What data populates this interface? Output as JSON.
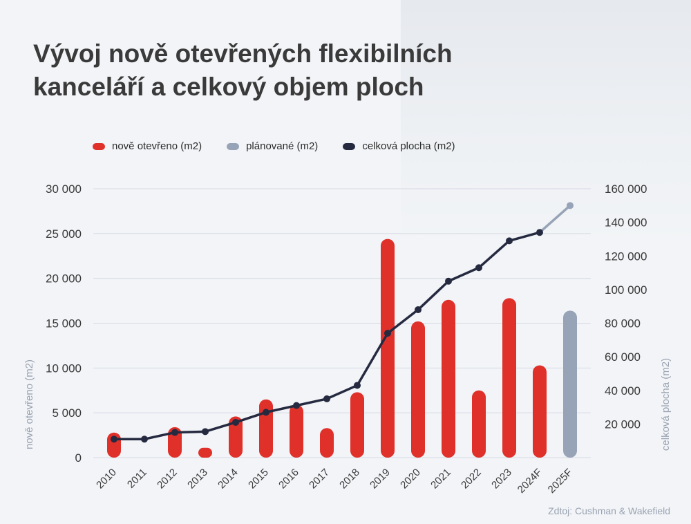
{
  "title_line1": "Vývoj nově otevřených flexibilních",
  "title_line2": "kanceláří a celkový objem ploch",
  "source": "Zdtoj: Cushman & Wakefield",
  "colors": {
    "new": "#e0302a",
    "planned": "#97a3b6",
    "total": "#262a40",
    "grid": "#d5dae3",
    "axis_label": "#9aa3b2"
  },
  "legend": [
    {
      "label": "nově otevřeno (m2)",
      "color": "#e0302a"
    },
    {
      "label": "plánované (m2)",
      "color": "#97a3b6"
    },
    {
      "label": "celková plocha (m2)",
      "color": "#262a40"
    }
  ],
  "chart_data": {
    "type": "bar",
    "categories": [
      "2010",
      "2011",
      "2012",
      "2013",
      "2014",
      "2015",
      "2016",
      "2017",
      "2018",
      "2019",
      "2020",
      "2021",
      "2022",
      "2023",
      "2024F",
      "2025F"
    ],
    "series": [
      {
        "name": "nově otevřeno (m2)",
        "type": "bar",
        "axis": "left",
        "values": [
          2800,
          0,
          3400,
          1100,
          4600,
          6500,
          5900,
          3300,
          7300,
          24400,
          15200,
          17600,
          7500,
          17800,
          10300,
          null
        ]
      },
      {
        "name": "plánované (m2)",
        "type": "bar",
        "axis": "left",
        "values": [
          null,
          null,
          null,
          null,
          null,
          null,
          null,
          null,
          null,
          null,
          null,
          null,
          null,
          null,
          null,
          16400
        ]
      },
      {
        "name": "celková plocha (m2)",
        "type": "line",
        "axis": "right",
        "values": [
          11000,
          11000,
          15000,
          15500,
          21000,
          27000,
          31000,
          35000,
          43000,
          74000,
          88000,
          105000,
          113000,
          129000,
          134000,
          150000
        ]
      }
    ],
    "ylabel_left": "nově otevřeno (m2)",
    "ylabel_right": "celková plocha (m2)",
    "ylim_left": [
      0,
      30000
    ],
    "ylim_right": [
      0,
      160000
    ],
    "yticks_left": [
      "0",
      "5 000",
      "10 000",
      "15 000",
      "20 000",
      "25 000",
      "30 000"
    ],
    "yticks_right": [
      "20 000",
      "40 000",
      "60 000",
      "80 000",
      "100 000",
      "120 000",
      "140 000",
      "160 000"
    ],
    "yticks_right_values": [
      20000,
      40000,
      60000,
      80000,
      100000,
      120000,
      140000,
      160000
    ],
    "grid": true,
    "legend_position": "top-left"
  }
}
